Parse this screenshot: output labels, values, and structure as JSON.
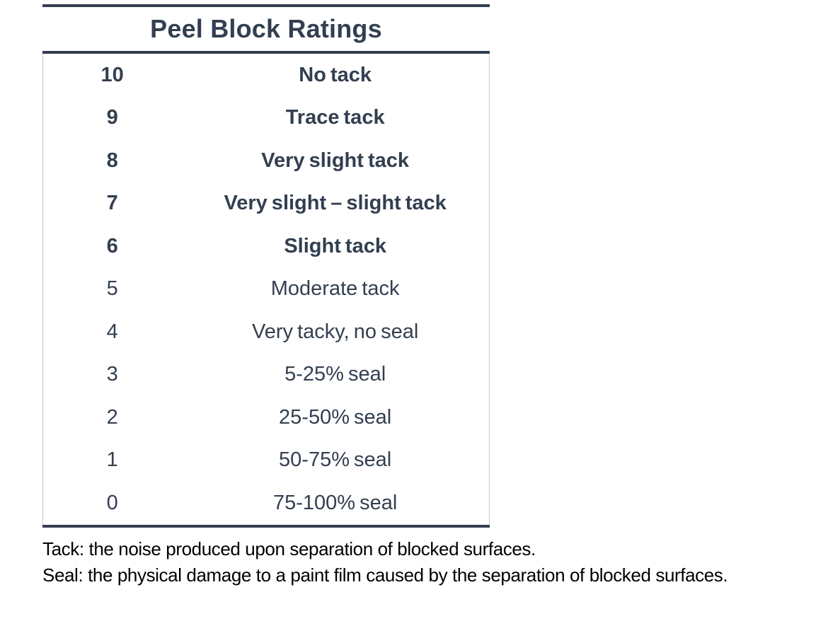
{
  "table": {
    "title": "Peel Block Ratings",
    "columns": [
      "rating",
      "description"
    ],
    "rows": [
      {
        "rating": "10",
        "description": "No tack",
        "bold": true
      },
      {
        "rating": "9",
        "description": "Trace tack",
        "bold": true
      },
      {
        "rating": "8",
        "description": "Very slight tack",
        "bold": true
      },
      {
        "rating": "7",
        "description": "Very slight – slight tack",
        "bold": true
      },
      {
        "rating": "6",
        "description": "Slight tack",
        "bold": true
      },
      {
        "rating": "5",
        "description": "Moderate tack",
        "bold": false
      },
      {
        "rating": "4",
        "description": "Very tacky, no seal",
        "bold": false
      },
      {
        "rating": "3",
        "description": "5-25% seal",
        "bold": false
      },
      {
        "rating": "2",
        "description": "25-50% seal",
        "bold": false
      },
      {
        "rating": "1",
        "description": "50-75% seal",
        "bold": false
      },
      {
        "rating": "0",
        "description": "75-100% seal",
        "bold": false
      }
    ]
  },
  "footnotes": [
    "Tack: the noise produced upon separation of blocked surfaces.",
    "Seal: the physical damage to a paint film caused by the separation of blocked surfaces."
  ],
  "colors": {
    "text_dark": "#333F50",
    "border_dark": "#333F50",
    "border_light": "#C9C9C9",
    "footnote_text": "#000000",
    "background": "#FFFFFF"
  }
}
